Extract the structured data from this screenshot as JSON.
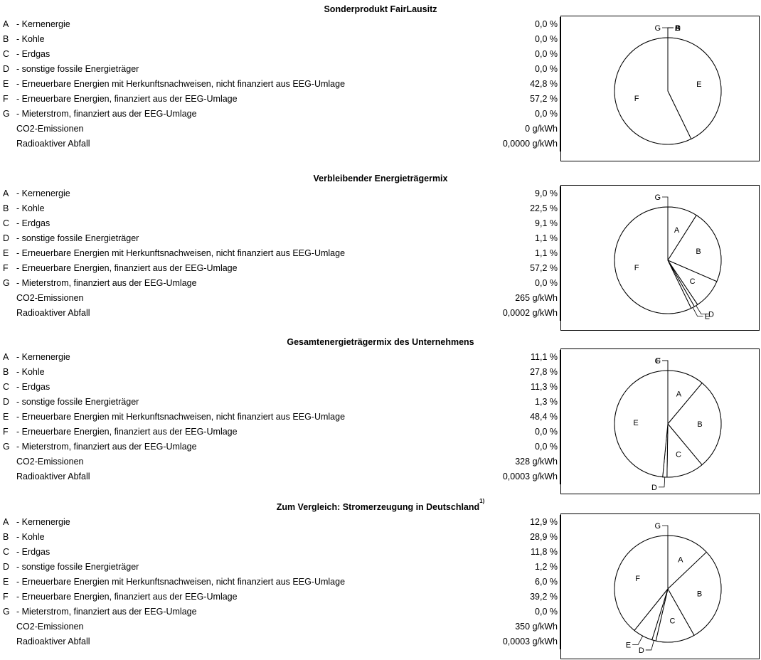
{
  "sections": [
    {
      "title": "Sonderprodukt FairLausitz",
      "footnote": "",
      "rows": [
        {
          "letter": "A",
          "label": "- Kernenergie",
          "value": "0,0 %"
        },
        {
          "letter": "B",
          "label": "- Kohle",
          "value": "0,0 %"
        },
        {
          "letter": "C",
          "label": "- Erdgas",
          "value": "0,0 %"
        },
        {
          "letter": "D",
          "label": "- sonstige fossile Energieträger",
          "value": "0,0 %"
        },
        {
          "letter": "E",
          "label": "- Erneuerbare Energien mit Herkunftsnachweisen, nicht finanziert aus EEG-Umlage",
          "value": "42,8 %"
        },
        {
          "letter": "F",
          "label": "- Erneuerbare Energien, finanziert aus der EEG-Umlage",
          "value": "57,2 %"
        },
        {
          "letter": "G",
          "label": "- Mieterstrom, finanziert aus der EEG-Umlage",
          "value": "0,0 %"
        },
        {
          "letter": "",
          "label": "CO2-Emissionen",
          "value": "0 g/kWh"
        },
        {
          "letter": "",
          "label": "Radioaktiver Abfall",
          "value": "0,0000 g/kWh"
        }
      ]
    },
    {
      "title": "Verbleibender Energieträgermix",
      "footnote": "",
      "rows": [
        {
          "letter": "A",
          "label": "- Kernenergie",
          "value": "9,0 %"
        },
        {
          "letter": "B",
          "label": "- Kohle",
          "value": "22,5 %"
        },
        {
          "letter": "C",
          "label": "- Erdgas",
          "value": "9,1 %"
        },
        {
          "letter": "D",
          "label": "- sonstige fossile Energieträger",
          "value": "1,1 %"
        },
        {
          "letter": "E",
          "label": "- Erneuerbare Energien mit Herkunftsnachweisen, nicht finanziert aus EEG-Umlage",
          "value": "1,1 %"
        },
        {
          "letter": "F",
          "label": "- Erneuerbare Energien, finanziert aus der EEG-Umlage",
          "value": "57,2 %"
        },
        {
          "letter": "G",
          "label": "- Mieterstrom, finanziert aus der EEG-Umlage",
          "value": "0,0 %"
        },
        {
          "letter": "",
          "label": "CO2-Emissionen",
          "value": "265 g/kWh"
        },
        {
          "letter": "",
          "label": "Radioaktiver Abfall",
          "value": "0,0002 g/kWh"
        }
      ]
    },
    {
      "title": "Gesamtenergieträgermix des Unternehmens",
      "footnote": "",
      "rows": [
        {
          "letter": "A",
          "label": "- Kernenergie",
          "value": "11,1 %"
        },
        {
          "letter": "B",
          "label": "- Kohle",
          "value": "27,8 %"
        },
        {
          "letter": "C",
          "label": "- Erdgas",
          "value": "11,3 %"
        },
        {
          "letter": "D",
          "label": "- sonstige fossile Energieträger",
          "value": "1,3 %"
        },
        {
          "letter": "E",
          "label": "- Erneuerbare Energien mit Herkunftsnachweisen, nicht finanziert aus EEG-Umlage",
          "value": "48,4 %"
        },
        {
          "letter": "F",
          "label": "- Erneuerbare Energien, finanziert aus der EEG-Umlage",
          "value": "0,0 %"
        },
        {
          "letter": "G",
          "label": "- Mieterstrom, finanziert aus der EEG-Umlage",
          "value": "0,0 %"
        },
        {
          "letter": "",
          "label": "CO2-Emissionen",
          "value": "328 g/kWh"
        },
        {
          "letter": "",
          "label": "Radioaktiver Abfall",
          "value": "0,0003 g/kWh"
        }
      ]
    },
    {
      "title": "Zum Vergleich: Stromerzeugung in Deutschland",
      "footnote": "1)",
      "rows": [
        {
          "letter": "A",
          "label": "- Kernenergie",
          "value": "12,9 %"
        },
        {
          "letter": "B",
          "label": "- Kohle",
          "value": "28,9 %"
        },
        {
          "letter": "C",
          "label": "- Erdgas",
          "value": "11,8 %"
        },
        {
          "letter": "D",
          "label": "- sonstige fossile Energieträger",
          "value": "1,2 %"
        },
        {
          "letter": "E",
          "label": "- Erneuerbare Energien mit Herkunftsnachweisen, nicht finanziert aus EEG-Umlage",
          "value": "6,0 %"
        },
        {
          "letter": "F",
          "label": "- Erneuerbare Energien, finanziert aus der EEG-Umlage",
          "value": "39,2 %"
        },
        {
          "letter": "G",
          "label": "- Mieterstrom, finanziert aus der EEG-Umlage",
          "value": "0,0 %"
        },
        {
          "letter": "",
          "label": "CO2-Emissionen",
          "value": "350 g/kWh"
        },
        {
          "letter": "",
          "label": "Radioaktiver Abfall",
          "value": "0,0003 g/kWh"
        }
      ]
    }
  ],
  "chart_data": [
    {
      "type": "pie",
      "title": "Sonderprodukt FairLausitz",
      "categories": [
        "A",
        "B",
        "C",
        "D",
        "E",
        "F",
        "G"
      ],
      "values": [
        0.0,
        0.0,
        0.0,
        0.0,
        42.8,
        57.2,
        0.0
      ]
    },
    {
      "type": "pie",
      "title": "Verbleibender Energieträgermix",
      "categories": [
        "A",
        "B",
        "C",
        "D",
        "E",
        "F",
        "G"
      ],
      "values": [
        9.0,
        22.5,
        9.1,
        1.1,
        1.1,
        57.2,
        0.0
      ]
    },
    {
      "type": "pie",
      "title": "Gesamtenergieträgermix des Unternehmens",
      "categories": [
        "A",
        "B",
        "C",
        "D",
        "E",
        "F",
        "G"
      ],
      "values": [
        11.1,
        27.8,
        11.3,
        1.3,
        48.4,
        0.0,
        0.0
      ]
    },
    {
      "type": "pie",
      "title": "Zum Vergleich: Stromerzeugung in Deutschland",
      "categories": [
        "A",
        "B",
        "C",
        "D",
        "E",
        "F",
        "G"
      ],
      "values": [
        12.9,
        28.9,
        11.8,
        1.2,
        6.0,
        39.2,
        0.0
      ]
    }
  ]
}
